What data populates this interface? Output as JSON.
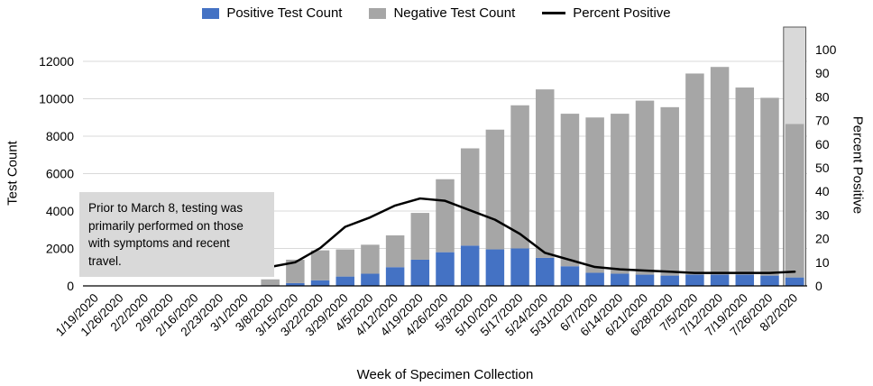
{
  "legend": [
    {
      "label": "Positive Test Count",
      "color": "#4472C4",
      "marker": "rect"
    },
    {
      "label": "Negative Test Count",
      "color": "#A6A6A6",
      "marker": "rect"
    },
    {
      "label": "Percent Positive",
      "color": "#000000",
      "marker": "line"
    }
  ],
  "annotation": {
    "text": "Prior to March 8, testing was primarily performed on those with symptoms and recent travel."
  },
  "chart_data": {
    "type": "bar",
    "stacked": true,
    "title": "",
    "xlabel": "Week of Specimen Collection",
    "ylabel": "Test Count",
    "y2label": "Percent Positive",
    "ylim": [
      0,
      12000
    ],
    "y_tick_step": 2000,
    "y2lim": [
      0,
      100
    ],
    "y2_tick_step": 10,
    "grid": true,
    "legend_position": "top",
    "highlight_last_category": true,
    "categories": [
      "1/19/2020",
      "1/26/2020",
      "2/2/2020",
      "2/9/2020",
      "2/16/2020",
      "2/23/2020",
      "3/1/2020",
      "3/8/2020",
      "3/15/2020",
      "3/22/2020",
      "3/29/2020",
      "4/5/2020",
      "4/12/2020",
      "4/19/2020",
      "4/26/2020",
      "5/3/2020",
      "5/10/2020",
      "5/17/2020",
      "5/24/2020",
      "5/31/2020",
      "6/7/2020",
      "6/14/2020",
      "6/21/2020",
      "6/28/2020",
      "7/5/2020",
      "7/12/2020",
      "7/19/2020",
      "7/26/2020",
      "8/2/2020"
    ],
    "series": [
      {
        "name": "Positive Test Count",
        "type": "bar",
        "axis": "left",
        "color": "#4472C4",
        "values": [
          0,
          0,
          0,
          0,
          0,
          0,
          0,
          30,
          150,
          300,
          500,
          650,
          1000,
          1400,
          1800,
          2150,
          1950,
          2000,
          1500,
          1050,
          700,
          650,
          600,
          550,
          600,
          600,
          600,
          550,
          450
        ]
      },
      {
        "name": "Negative Test Count",
        "type": "bar",
        "axis": "left",
        "color": "#A6A6A6",
        "values": [
          0,
          0,
          0,
          0,
          0,
          0,
          0,
          320,
          1250,
          1600,
          1450,
          1550,
          1700,
          2500,
          3900,
          5200,
          6400,
          7650,
          9000,
          8150,
          8300,
          8550,
          9300,
          9000,
          10750,
          11100,
          10000,
          9500,
          8200
        ]
      },
      {
        "name": "Percent Positive",
        "type": "line",
        "axis": "right",
        "color": "#000000",
        "values": [
          null,
          null,
          null,
          null,
          null,
          null,
          null,
          8,
          10,
          16,
          25,
          29,
          34,
          37,
          36,
          32,
          28,
          22,
          14,
          11,
          8,
          7,
          6.5,
          6,
          5.5,
          5.5,
          5.5,
          5.5,
          6
        ]
      }
    ]
  }
}
